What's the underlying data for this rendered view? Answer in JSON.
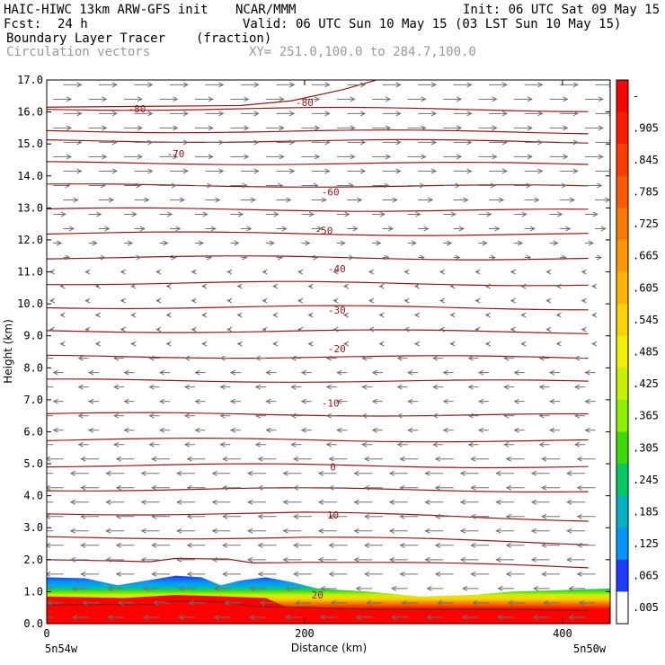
{
  "header": {
    "model": "HAIC-HIWC 13km ARW-GFS init",
    "org": "NCAR/MMM",
    "init": "Init: 06 UTC Sat 09 May 15",
    "fcst_label": "Fcst:",
    "fcst_value": "24 h",
    "valid": "Valid: 06 UTC Sun 10 May 15 (03 LST Sun 10 May 15)",
    "field": "Boundary Layer Tracer",
    "units": "(fraction)",
    "vectors": "Circulation vectors",
    "xy": "XY= 251.0,100.0 to 284.7,100.0"
  },
  "colors": {
    "contour": "#8b1a1a",
    "vector": "#707070",
    "tracer_low": "#1e3cff",
    "tracer_high": "#ff0000"
  },
  "chart_data": {
    "type": "heatmap",
    "title": "Boundary Layer Tracer",
    "xlabel": "Distance (km)",
    "ylabel": "Height (km)",
    "xlim": [
      0,
      437
    ],
    "ylim": [
      0.0,
      17.0
    ],
    "x_ticks": [
      0,
      200,
      400
    ],
    "y_ticks": [
      "0.0",
      "1.0",
      "2.0",
      "3.0",
      "4.0",
      "5.0",
      "6.0",
      "7.0",
      "8.0",
      "9.0",
      "10.0",
      "11.0",
      "12.0",
      "13.0",
      "14.0",
      "15.0",
      "16.0",
      "17.0"
    ],
    "x_end_labels": {
      "left": "5n54w",
      "right": "5n50w"
    },
    "colorbar": {
      "levels": [
        "-",
        ".905",
        ".845",
        ".785",
        ".725",
        ".665",
        ".605",
        ".545",
        ".485",
        ".425",
        ".365",
        ".305",
        ".245",
        ".185",
        ".125",
        ".065",
        ".005"
      ],
      "colors": [
        "#ff0000",
        "#ff1a00",
        "#ff3c00",
        "#ff5a00",
        "#ff7800",
        "#ff9600",
        "#ffb400",
        "#ffd200",
        "#f0f000",
        "#c8f000",
        "#8cf000",
        "#3cdc00",
        "#00c864",
        "#00b4c8",
        "#0096ff",
        "#1e3cff",
        "#ffffff"
      ]
    },
    "isotherm_labels": [
      {
        "value": "-80",
        "x": 70,
        "y": 16.1
      },
      {
        "value": "-80",
        "x": 200,
        "y": 16.3
      },
      {
        "value": "-70",
        "x": 100,
        "y": 14.7
      },
      {
        "value": "-60",
        "x": 220,
        "y": 13.5
      },
      {
        "value": "-50",
        "x": 215,
        "y": 12.3
      },
      {
        "value": "-40",
        "x": 225,
        "y": 11.1
      },
      {
        "value": "-30",
        "x": 225,
        "y": 9.8
      },
      {
        "value": "-20",
        "x": 225,
        "y": 8.6
      },
      {
        "value": "-10",
        "x": 220,
        "y": 6.9
      },
      {
        "value": "0",
        "x": 222,
        "y": 4.9
      },
      {
        "value": "10",
        "x": 222,
        "y": 3.4
      },
      {
        "value": "20",
        "x": 210,
        "y": 0.9
      }
    ]
  }
}
